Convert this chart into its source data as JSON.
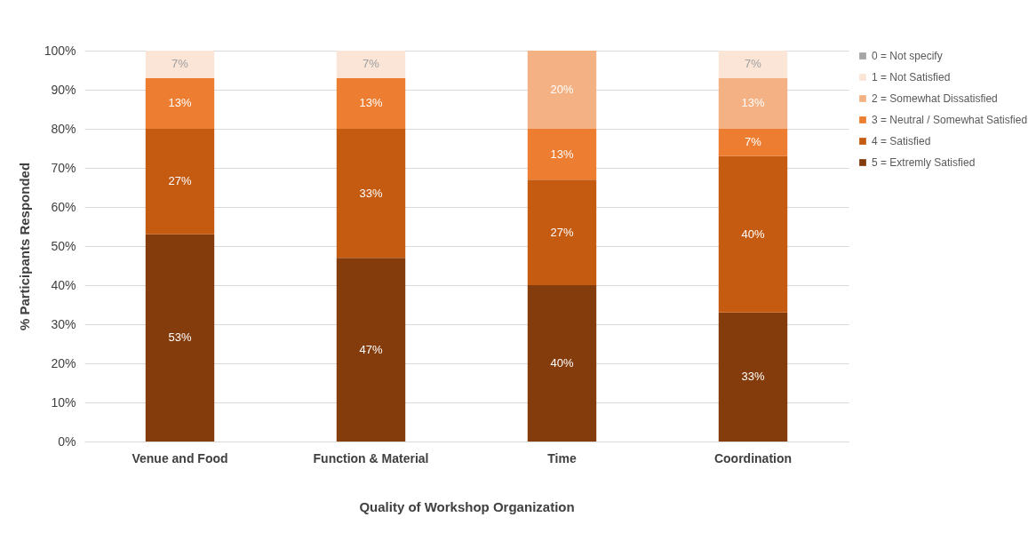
{
  "chart_data": {
    "type": "bar",
    "stacked": true,
    "xlabel": "Quality of Workshop Organization",
    "ylabel": "% Participants Responded",
    "categories": [
      "Venue and Food",
      "Function & Material",
      "Time",
      "Coordination"
    ],
    "series": [
      {
        "name": "5 = Extremly Satisfied",
        "color": "#843c0c",
        "values": [
          53,
          47,
          40,
          33
        ],
        "value_labels": [
          "53%",
          "47%",
          "40%",
          "33%"
        ]
      },
      {
        "name": "4 = Satisfied",
        "color": "#c55a11",
        "values": [
          27,
          33,
          27,
          40
        ],
        "value_labels": [
          "27%",
          "33%",
          "27%",
          "40%"
        ]
      },
      {
        "name": "3 = Neutral / Somewhat Satisfied",
        "color": "#ed7d31",
        "values": [
          13,
          13,
          13,
          7
        ],
        "value_labels": [
          "13%",
          "13%",
          "13%",
          "7%"
        ]
      },
      {
        "name": "2 = Somewhat Dissatisfied",
        "color": "#f4b183",
        "values": [
          null,
          null,
          20,
          13
        ],
        "value_labels": [
          null,
          null,
          "20%",
          "13%"
        ]
      },
      {
        "name": "1 = Not Satisfied",
        "color": "#fbe5d6",
        "values": [
          7,
          7,
          null,
          7
        ],
        "value_labels": [
          "7%",
          "7%",
          null,
          "7%"
        ]
      },
      {
        "name": "0 = Not specify",
        "color": "#a5a5a5",
        "values": [
          null,
          null,
          null,
          null
        ],
        "value_labels": [
          null,
          null,
          null,
          null
        ]
      }
    ],
    "ylim": [
      0,
      100
    ],
    "yticks": [
      {
        "value": 0,
        "label": "0%"
      },
      {
        "value": 10,
        "label": "10%"
      },
      {
        "value": 20,
        "label": "20%"
      },
      {
        "value": 30,
        "label": "30%"
      },
      {
        "value": 40,
        "label": "40%"
      },
      {
        "value": 50,
        "label": "50%"
      },
      {
        "value": 60,
        "label": "60%"
      },
      {
        "value": 70,
        "label": "70%"
      },
      {
        "value": 80,
        "label": "80%"
      },
      {
        "value": 90,
        "label": "90%"
      },
      {
        "value": 100,
        "label": "100%"
      }
    ],
    "grid": "y",
    "legend": "right"
  }
}
